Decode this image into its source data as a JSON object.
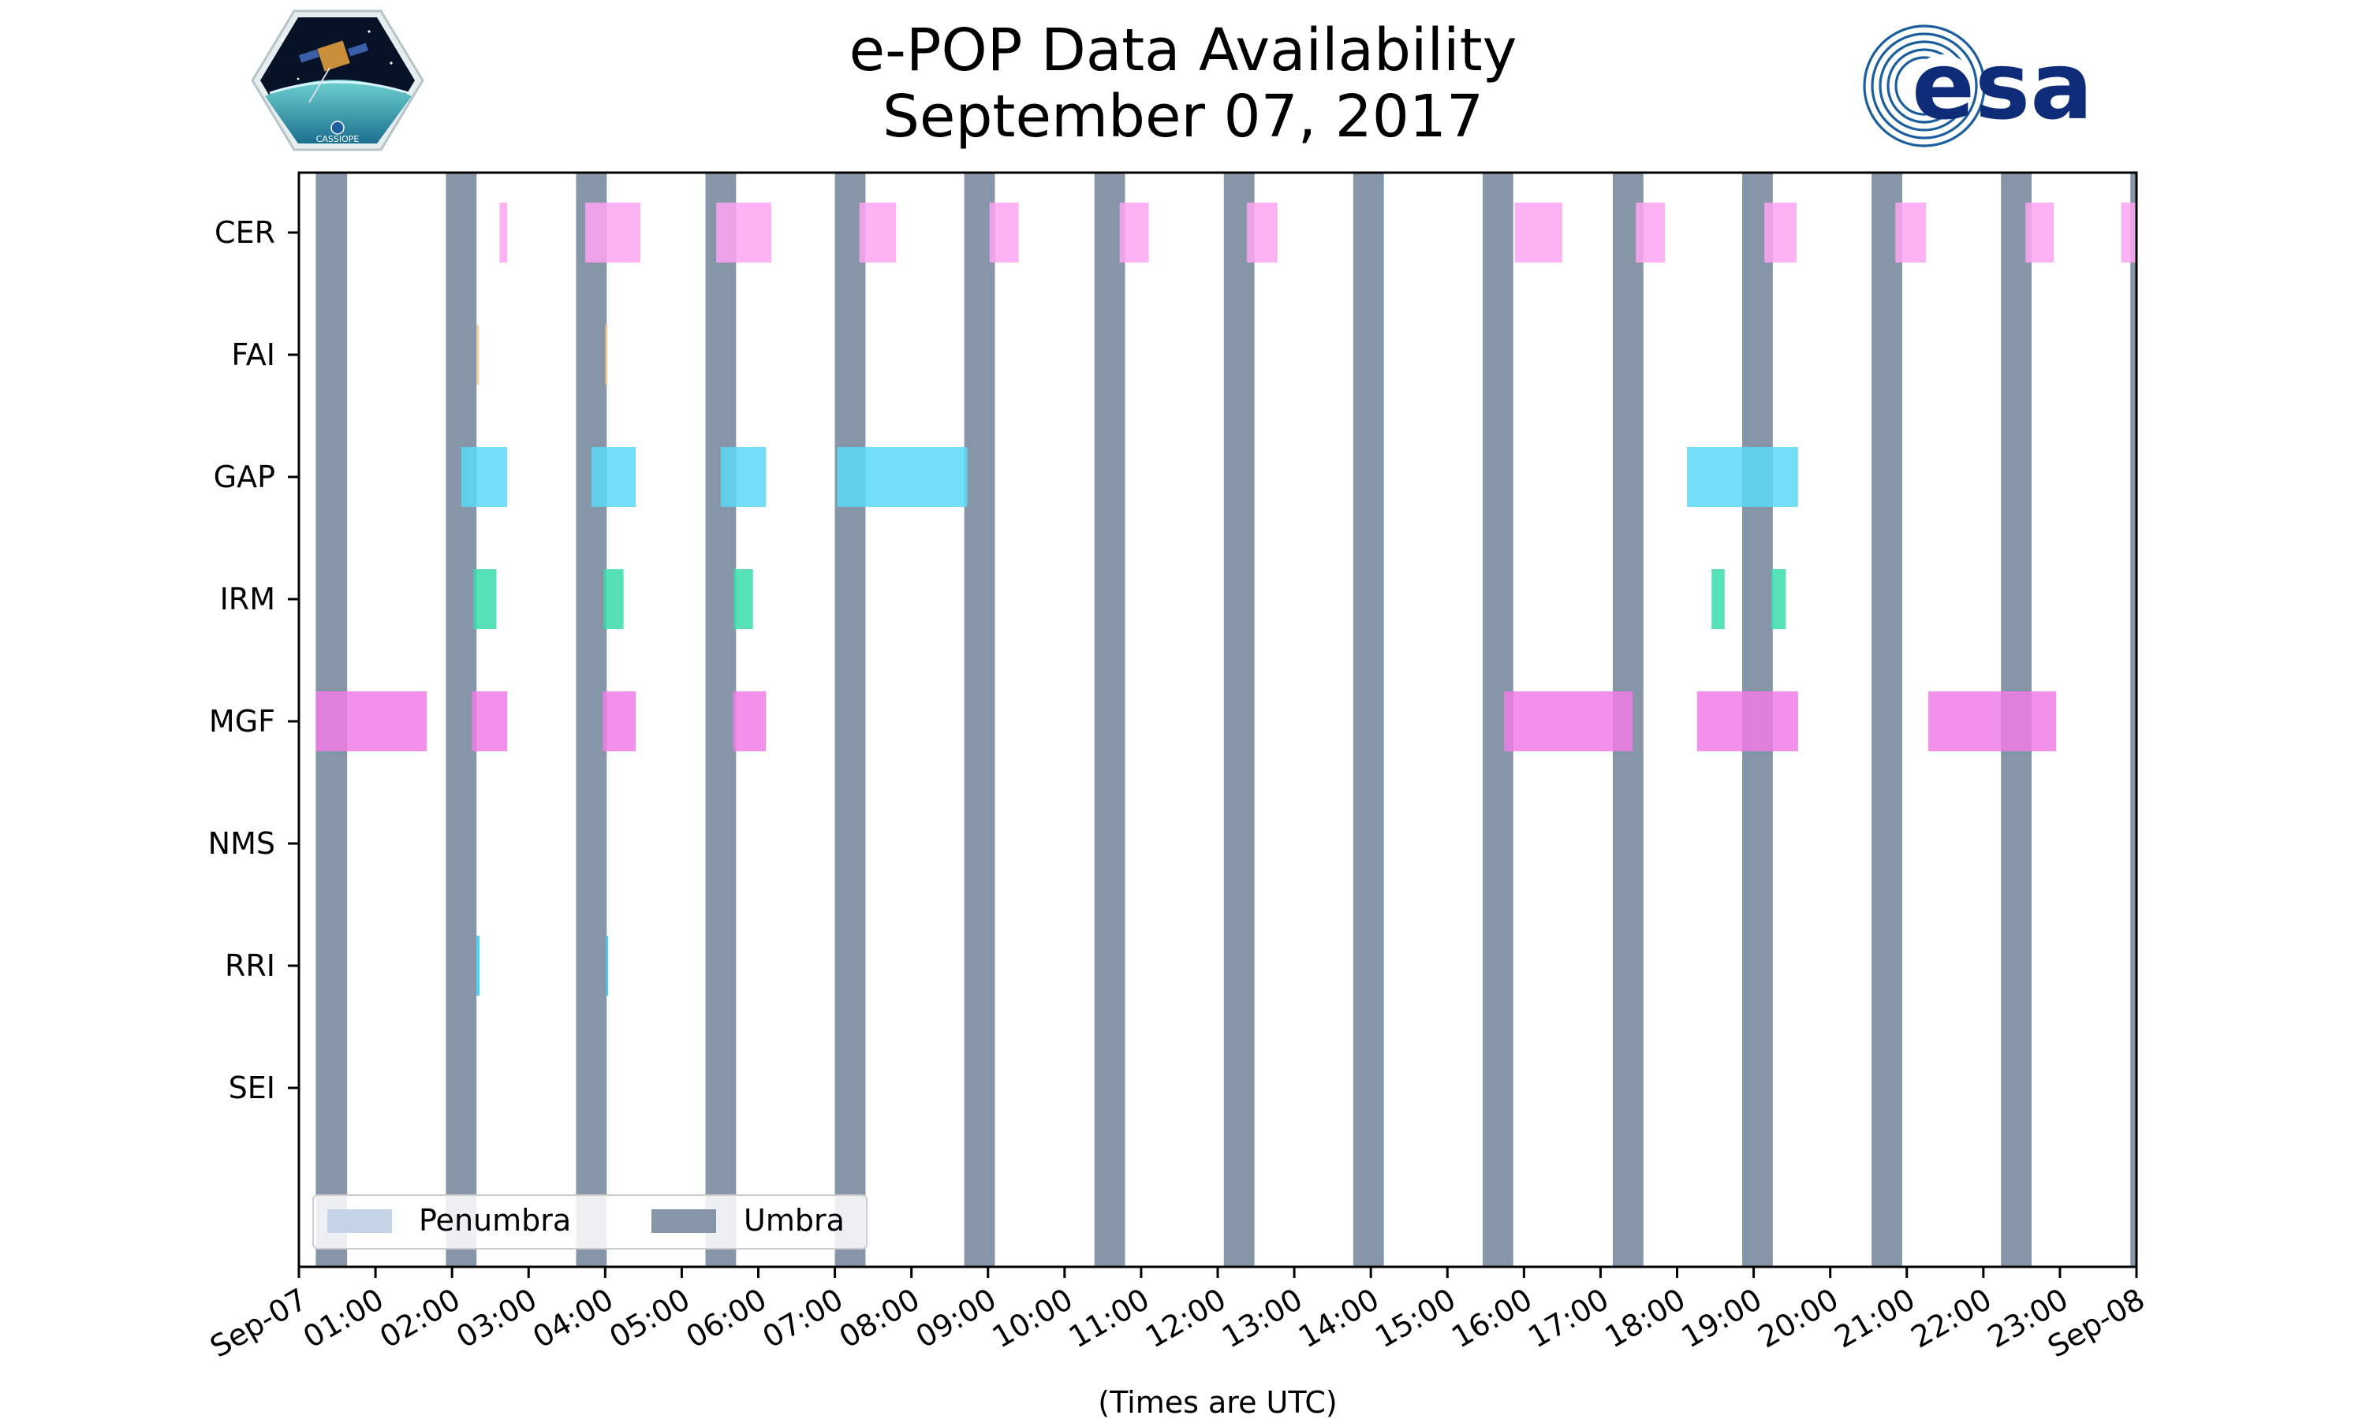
{
  "chart_data": {
    "type": "timeline",
    "title": [
      "e-POP Data Availability",
      "September 07, 2017"
    ],
    "xlabel": "(Times are UTC)",
    "xlim_hours": [
      0,
      24
    ],
    "x_tick_labels": [
      "Sep-07",
      "01:00",
      "02:00",
      "03:00",
      "04:00",
      "05:00",
      "06:00",
      "07:00",
      "08:00",
      "09:00",
      "10:00",
      "11:00",
      "12:00",
      "13:00",
      "14:00",
      "15:00",
      "16:00",
      "17:00",
      "18:00",
      "19:00",
      "20:00",
      "21:00",
      "22:00",
      "23:00",
      "Sep-08"
    ],
    "instruments": [
      "CER",
      "FAI",
      "GAP",
      "IRM",
      "MGF",
      "NMS",
      "RRI",
      "SEI"
    ],
    "legend": {
      "position": "lower-left",
      "entries": [
        {
          "label": "Penumbra",
          "color": "#c5d3e6"
        },
        {
          "label": "Umbra",
          "color": "#8696a8"
        }
      ]
    },
    "umbra_intervals": [
      [
        0.22,
        0.63
      ],
      [
        1.92,
        2.32
      ],
      [
        3.62,
        4.02
      ],
      [
        5.31,
        5.71
      ],
      [
        7.0,
        7.4
      ],
      [
        8.69,
        9.09
      ],
      [
        10.39,
        10.79
      ],
      [
        12.08,
        12.48
      ],
      [
        13.77,
        14.17
      ],
      [
        15.46,
        15.86
      ],
      [
        17.16,
        17.56
      ],
      [
        18.85,
        19.25
      ],
      [
        20.54,
        20.94
      ],
      [
        22.23,
        22.63
      ],
      [
        23.92,
        24.0
      ]
    ],
    "series": [
      {
        "name": "CER",
        "color": "#fda4f2",
        "intervals": [
          [
            2.62,
            2.72
          ],
          [
            3.74,
            4.46
          ],
          [
            5.45,
            6.17
          ],
          [
            7.32,
            7.8
          ],
          [
            9.02,
            9.4
          ],
          [
            10.72,
            11.1
          ],
          [
            12.38,
            12.78
          ],
          [
            15.88,
            16.5
          ],
          [
            17.46,
            17.84
          ],
          [
            19.14,
            19.56
          ],
          [
            20.85,
            21.25
          ],
          [
            22.55,
            22.92
          ],
          [
            23.8,
            24.0
          ]
        ]
      },
      {
        "name": "FAI",
        "color": "#f5c98a",
        "intervals": [
          [
            2.32,
            2.35
          ],
          [
            4.0,
            4.03
          ]
        ]
      },
      {
        "name": "GAP",
        "color": "#5bd8f6",
        "intervals": [
          [
            2.12,
            2.72
          ],
          [
            3.82,
            4.4
          ],
          [
            5.51,
            6.1
          ],
          [
            7.03,
            8.73
          ],
          [
            18.13,
            19.58
          ]
        ]
      },
      {
        "name": "IRM",
        "color": "#38dcac",
        "intervals": [
          [
            2.28,
            2.58
          ],
          [
            3.98,
            4.24
          ],
          [
            5.68,
            5.93
          ],
          [
            18.45,
            18.62
          ],
          [
            19.23,
            19.42
          ]
        ]
      },
      {
        "name": "MGF",
        "color": "#f07ce6",
        "intervals": [
          [
            0.22,
            1.67
          ],
          [
            2.26,
            2.72
          ],
          [
            3.97,
            4.4
          ],
          [
            5.67,
            6.1
          ],
          [
            15.74,
            17.42
          ],
          [
            18.26,
            19.58
          ],
          [
            21.28,
            22.95
          ]
        ]
      },
      {
        "name": "NMS",
        "color": "#f07ce6",
        "intervals": []
      },
      {
        "name": "RRI",
        "color": "#2ec8f0",
        "intervals": [
          [
            2.32,
            2.36
          ],
          [
            4.01,
            4.04
          ]
        ]
      },
      {
        "name": "SEI",
        "color": "#f07ce6",
        "intervals": []
      }
    ]
  },
  "logos": {
    "mission_logo_text": "CASSIOPE",
    "agency_logo_text": "esa"
  }
}
